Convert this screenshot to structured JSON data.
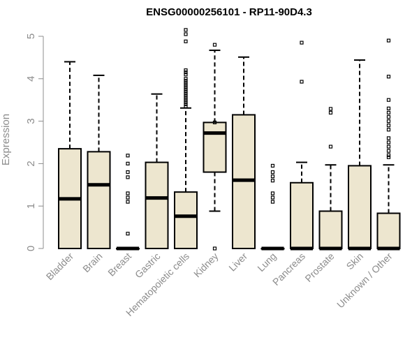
{
  "chart_data": {
    "type": "boxplot",
    "title": "ENSG00000256101 - RP11-90D4.3",
    "xlabel": "",
    "ylabel": "Expression",
    "ylim": [
      0,
      5.2
    ],
    "yticks": [
      0,
      1,
      2,
      3,
      4,
      5
    ],
    "box_fill": "#ede6cf",
    "box_stroke": "#000000",
    "axis_color": "#8c8c8c",
    "categories": [
      "Bladder",
      "Brain",
      "Breast",
      "Gastric",
      "Hematopoietic cells",
      "Kidney",
      "Liver",
      "Lung",
      "Pancreas",
      "Prostate",
      "Skin",
      "Unknown / Other"
    ],
    "boxes": [
      {
        "category": "Bladder",
        "q1": 0,
        "median": 1.17,
        "q3": 2.35,
        "whisker_low": 0,
        "whisker_high": 4.4,
        "outliers": []
      },
      {
        "category": "Brain",
        "q1": 0,
        "median": 1.5,
        "q3": 2.28,
        "whisker_low": 0,
        "whisker_high": 4.08,
        "outliers": []
      },
      {
        "category": "Breast",
        "q1": 0,
        "median": 0,
        "q3": 0,
        "whisker_low": 0,
        "whisker_high": 0,
        "outliers": [
          2.19,
          2.0,
          1.8,
          1.68,
          1.3,
          1.2,
          1.1,
          0.35
        ]
      },
      {
        "category": "Gastric",
        "q1": 0,
        "median": 1.19,
        "q3": 2.03,
        "whisker_low": 0,
        "whisker_high": 3.64,
        "outliers": []
      },
      {
        "category": "Hematopoietic cells",
        "q1": 0,
        "median": 0.76,
        "q3": 1.33,
        "whisker_low": 0,
        "whisker_high": 3.31,
        "outliers": [
          5.15,
          5.05,
          4.88,
          4.2,
          4.15,
          4.1,
          4.0,
          3.95,
          3.9,
          3.85,
          3.8,
          3.75,
          3.7,
          3.65,
          3.6,
          3.55,
          3.5,
          3.45,
          3.4,
          3.35
        ]
      },
      {
        "category": "Kidney",
        "q1": 1.8,
        "median": 2.72,
        "q3": 2.97,
        "whisker_low": 0.88,
        "whisker_high": 4.67,
        "outliers": [
          4.8,
          2.97,
          0
        ]
      },
      {
        "category": "Liver",
        "q1": 0,
        "median": 1.61,
        "q3": 3.15,
        "whisker_low": 0,
        "whisker_high": 4.51,
        "outliers": []
      },
      {
        "category": "Lung",
        "q1": 0,
        "median": 0,
        "q3": 0,
        "whisker_low": 0,
        "whisker_high": 0,
        "outliers": [
          1.95,
          1.8,
          1.7,
          1.6,
          1.3,
          1.2,
          1.1
        ]
      },
      {
        "category": "Pancreas",
        "q1": 0,
        "median": 0,
        "q3": 1.55,
        "whisker_low": 0,
        "whisker_high": 2.03,
        "outliers": [
          4.85,
          3.93
        ]
      },
      {
        "category": "Prostate",
        "q1": 0,
        "median": 0,
        "q3": 0.88,
        "whisker_low": 0,
        "whisker_high": 1.97,
        "outliers": [
          3.29,
          3.2,
          2.4
        ]
      },
      {
        "category": "Skin",
        "q1": 0,
        "median": 0,
        "q3": 1.95,
        "whisker_low": 0,
        "whisker_high": 4.44,
        "outliers": []
      },
      {
        "category": "Unknown / Other",
        "q1": 0,
        "median": 0,
        "q3": 0.83,
        "whisker_low": 0,
        "whisker_high": 1.97,
        "outliers": [
          4.9,
          4.05,
          3.5,
          3.3,
          3.2,
          3.1,
          3.0,
          2.9,
          2.8,
          2.6,
          2.5,
          2.4,
          2.3,
          2.2,
          2.15
        ]
      }
    ]
  }
}
